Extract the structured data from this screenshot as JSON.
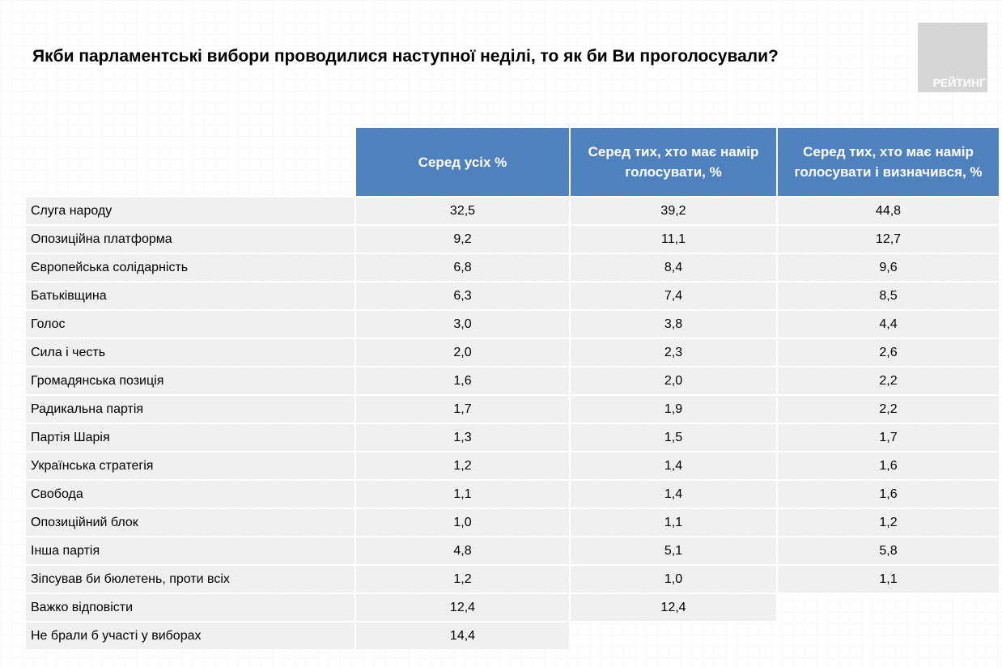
{
  "title": "Якби парламентські вибори проводилися наступної неділі, то як би Ви проголосували?",
  "logo": "РЕЙТИНГ",
  "columns": [
    "Серед усіх %",
    "Серед тих, хто має намір голосувати, %",
    "Серед тих, хто має намір голосувати і визначився, %"
  ],
  "rows": [
    {
      "label": "Слуга народу",
      "v": [
        "32,5",
        "39,2",
        "44,8"
      ]
    },
    {
      "label": "Опозиційна платформа",
      "v": [
        "9,2",
        "11,1",
        "12,7"
      ]
    },
    {
      "label": "Європейська солідарність",
      "v": [
        "6,8",
        "8,4",
        "9,6"
      ]
    },
    {
      "label": "Батьківщина",
      "v": [
        "6,3",
        "7,4",
        "8,5"
      ]
    },
    {
      "label": "Голос",
      "v": [
        "3,0",
        "3,8",
        "4,4"
      ]
    },
    {
      "label": "Сила і честь",
      "v": [
        "2,0",
        "2,3",
        "2,6"
      ]
    },
    {
      "label": "Громадянська позиція",
      "v": [
        "1,6",
        "2,0",
        "2,2"
      ]
    },
    {
      "label": "Радикальна партія",
      "v": [
        "1,7",
        "1,9",
        "2,2"
      ]
    },
    {
      "label": "Партія Шарія",
      "v": [
        "1,3",
        "1,5",
        "1,7"
      ]
    },
    {
      "label": "Українська стратегія",
      "v": [
        "1,2",
        "1,4",
        "1,6"
      ]
    },
    {
      "label": "Свобода",
      "v": [
        "1,1",
        "1,4",
        "1,6"
      ]
    },
    {
      "label": "Опозиційний блок",
      "v": [
        "1,0",
        "1,1",
        "1,2"
      ]
    },
    {
      "label": "Інша партія",
      "v": [
        "4,8",
        "5,1",
        "5,8"
      ]
    },
    {
      "label": "Зіпсував би бюлетень, проти всіх",
      "v": [
        "1,2",
        "1,0",
        "1,1"
      ]
    },
    {
      "label": "Важко відповісти",
      "v": [
        "12,4",
        "12,4",
        null
      ]
    },
    {
      "label": "Не брали б участі у виборах",
      "v": [
        "14,4",
        null,
        null
      ]
    }
  ]
}
